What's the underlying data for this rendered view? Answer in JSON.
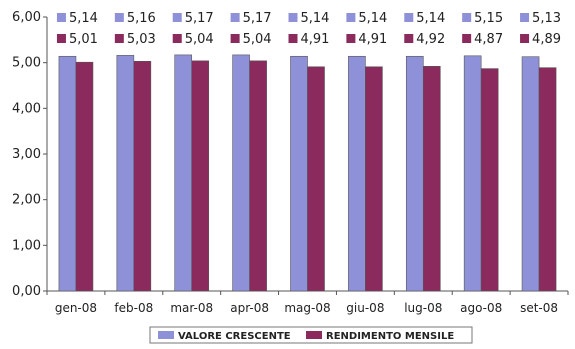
{
  "chart_data": {
    "type": "bar",
    "categories": [
      "gen-08",
      "feb-08",
      "mar-08",
      "apr-08",
      "mag-08",
      "giu-08",
      "lug-08",
      "ago-08",
      "set-08"
    ],
    "series": [
      {
        "name": "VALORE CRESCENTE",
        "color": "#8f91d8",
        "values": [
          5.14,
          5.16,
          5.17,
          5.17,
          5.14,
          5.14,
          5.14,
          5.15,
          5.13
        ],
        "labels": [
          "5,14",
          "5,16",
          "5,17",
          "5,17",
          "5,14",
          "5,14",
          "5,14",
          "5,15",
          "5,13"
        ]
      },
      {
        "name": "RENDIMENTO MENSILE",
        "color": "#8b2a5c",
        "values": [
          5.01,
          5.03,
          5.04,
          5.04,
          4.91,
          4.91,
          4.92,
          4.87,
          4.89
        ],
        "labels": [
          "5,01",
          "5,03",
          "5,04",
          "5,04",
          "4,91",
          "4,91",
          "4,92",
          "4,87",
          "4,89"
        ]
      }
    ],
    "y_ticks": [
      "0,00",
      "1,00",
      "2,00",
      "3,00",
      "4,00",
      "5,00",
      "6,00"
    ],
    "ylim": [
      0,
      6
    ],
    "grid": false,
    "legend_position": "bottom"
  }
}
